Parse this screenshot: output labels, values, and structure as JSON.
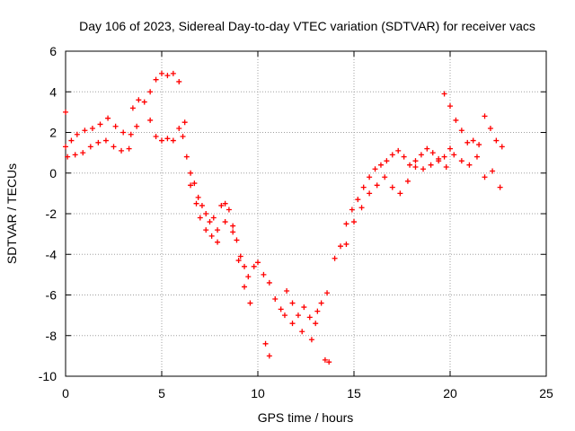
{
  "chart_data": {
    "type": "scatter",
    "title": "Day 106 of 2023, Sidereal Day-to-day VTEC variation (SDTVAR) for receiver vacs",
    "xlabel": "GPS time / hours",
    "ylabel": "SDTVAR / TECUs",
    "xlim": [
      0,
      25
    ],
    "ylim": [
      -10,
      6
    ],
    "xticks": [
      0,
      5,
      10,
      15,
      20,
      25
    ],
    "yticks": [
      -10,
      -8,
      -6,
      -4,
      -2,
      0,
      2,
      4,
      6
    ],
    "grid": true,
    "marker": "+",
    "color": "#ff0000",
    "series": [
      {
        "name": "SDTVAR",
        "x": [
          0.0,
          0.3,
          0.6,
          1.0,
          1.4,
          1.8,
          2.2,
          2.6,
          3.0,
          3.4,
          3.7,
          0.1,
          0.5,
          0.9,
          1.3,
          1.7,
          2.1,
          2.5,
          2.9,
          3.3,
          3.5,
          3.8,
          4.1,
          4.4,
          4.7,
          5.0,
          5.3,
          5.6,
          5.9,
          6.2,
          4.4,
          4.7,
          5.0,
          5.3,
          5.6,
          5.9,
          6.1,
          6.3,
          6.5,
          6.7,
          6.9,
          7.1,
          7.3,
          7.5,
          7.7,
          7.9,
          8.1,
          8.3,
          8.5,
          8.7,
          8.9,
          9.1,
          9.3,
          9.5,
          9.8,
          10.0,
          6.5,
          6.8,
          7.0,
          7.3,
          7.6,
          7.9,
          8.3,
          8.7,
          9.0,
          9.3,
          9.6,
          10.3,
          10.6,
          10.9,
          11.2,
          11.5,
          11.8,
          12.1,
          12.4,
          12.7,
          13.0,
          13.3,
          13.6,
          10.4,
          10.6,
          11.4,
          11.8,
          12.3,
          12.8,
          13.1,
          13.5,
          14.0,
          14.3,
          14.6,
          14.9,
          15.2,
          15.5,
          15.8,
          16.1,
          16.4,
          16.7,
          17.0,
          17.3,
          17.6,
          17.9,
          18.2,
          18.5,
          18.8,
          19.1,
          19.4,
          19.7,
          20.0,
          14.6,
          15.0,
          15.4,
          15.8,
          16.2,
          16.6,
          17.0,
          17.4,
          17.8,
          18.2,
          18.6,
          19.0,
          19.4,
          19.8,
          19.7,
          20.0,
          20.3,
          20.6,
          20.9,
          21.2,
          21.5,
          21.8,
          22.1,
          22.4,
          22.7,
          20.2,
          20.6,
          21.0,
          21.4,
          21.8,
          22.2,
          22.6,
          0.0,
          13.7
        ],
        "y": [
          1.3,
          1.6,
          1.9,
          2.1,
          2.2,
          2.4,
          2.7,
          2.3,
          2.0,
          1.9,
          2.3,
          0.8,
          0.9,
          1.0,
          1.3,
          1.5,
          1.6,
          1.3,
          1.1,
          1.2,
          3.2,
          3.6,
          3.5,
          4.0,
          4.6,
          4.9,
          4.8,
          4.9,
          4.5,
          2.5,
          2.6,
          1.8,
          1.6,
          1.7,
          1.6,
          2.2,
          1.8,
          0.8,
          0.0,
          -0.5,
          -1.2,
          -1.6,
          -2.0,
          -2.4,
          -2.2,
          -2.8,
          -1.6,
          -1.5,
          -1.8,
          -2.6,
          -3.3,
          -4.1,
          -4.6,
          -5.1,
          -4.6,
          -4.4,
          -0.6,
          -1.5,
          -2.2,
          -2.8,
          -3.1,
          -3.4,
          -2.4,
          -2.9,
          -4.3,
          -5.6,
          -6.4,
          -5.0,
          -5.4,
          -6.2,
          -6.7,
          -5.8,
          -6.4,
          -7.0,
          -6.6,
          -7.1,
          -7.4,
          -6.4,
          -5.9,
          -8.4,
          -9.0,
          -7.0,
          -7.4,
          -7.8,
          -8.2,
          -6.8,
          -9.2,
          -4.2,
          -3.6,
          -2.5,
          -1.8,
          -1.3,
          -0.7,
          -0.2,
          0.2,
          0.4,
          0.6,
          0.9,
          1.1,
          0.8,
          0.4,
          0.6,
          0.9,
          1.2,
          1.0,
          0.7,
          0.8,
          1.2,
          -3.5,
          -2.4,
          -1.7,
          -1.0,
          -0.6,
          -0.2,
          -0.7,
          -1.0,
          -0.4,
          0.3,
          0.2,
          0.4,
          0.6,
          0.3,
          3.9,
          3.3,
          2.6,
          2.1,
          1.5,
          1.6,
          1.4,
          2.8,
          2.2,
          1.6,
          1.3,
          0.9,
          0.6,
          0.4,
          0.8,
          -0.2,
          0.1,
          -0.7,
          3.0,
          -9.3
        ]
      }
    ]
  }
}
